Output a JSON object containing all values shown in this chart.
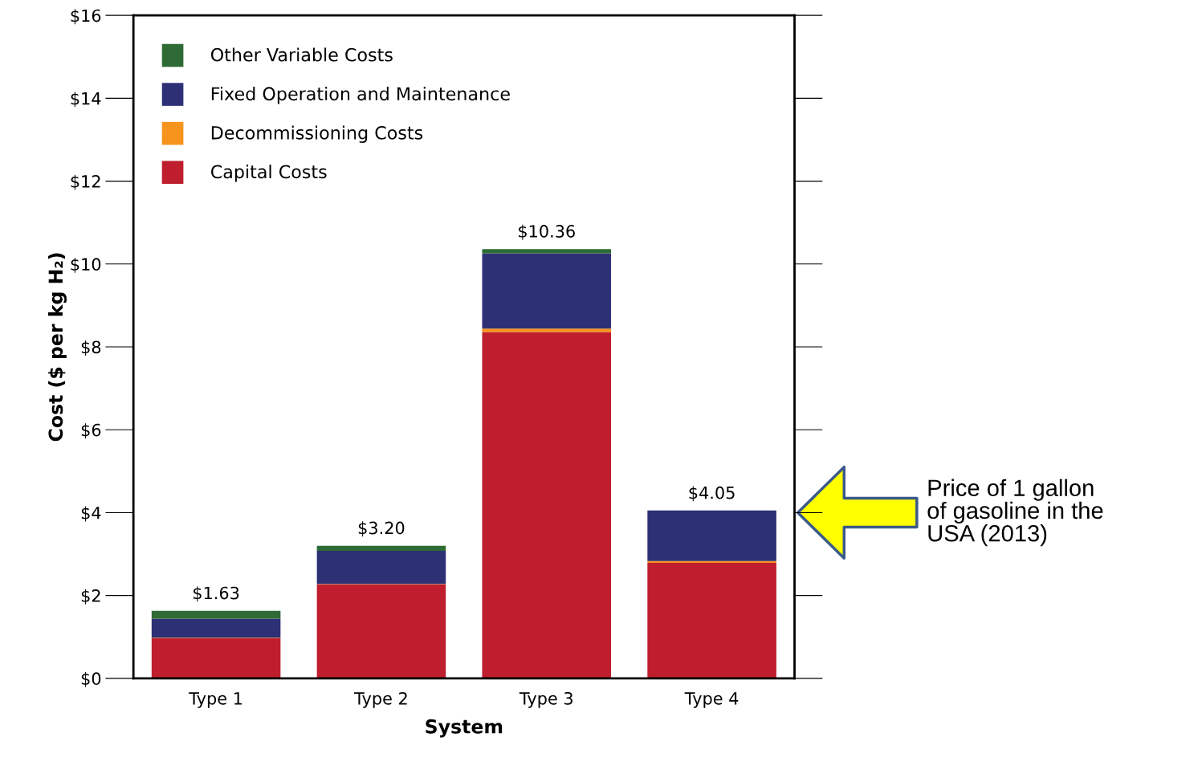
{
  "chart_data": {
    "type": "bar",
    "stacked": true,
    "xlabel": "System",
    "ylabel": "Cost ($ per kg H₂)",
    "categories": [
      "Type 1",
      "Type 2",
      "Type 3",
      "Type 4"
    ],
    "series": [
      {
        "name": "Capital Costs",
        "color": "#be1e2d",
        "values": [
          0.97,
          2.27,
          8.36,
          2.79
        ]
      },
      {
        "name": "Decommissioning Costs",
        "color": "#f7941d",
        "values": [
          0.01,
          0.01,
          0.08,
          0.04
        ]
      },
      {
        "name": "Fixed Operation and Maintenance",
        "color": "#2e3076",
        "values": [
          0.46,
          0.8,
          1.82,
          1.22
        ]
      },
      {
        "name": "Other Variable Costs",
        "color": "#2e6b35",
        "values": [
          0.19,
          0.12,
          0.1,
          0.0
        ]
      }
    ],
    "totals": [
      "$1.63",
      "$3.20",
      "$10.36",
      "$4.05"
    ],
    "ylim": [
      0,
      16
    ],
    "yticks": [
      {
        "value": 0,
        "label": "$0"
      },
      {
        "value": 2,
        "label": "$2"
      },
      {
        "value": 4,
        "label": "$4"
      },
      {
        "value": 6,
        "label": "$6"
      },
      {
        "value": 8,
        "label": "$8"
      },
      {
        "value": 10,
        "label": "$10"
      },
      {
        "value": 12,
        "label": "$12"
      },
      {
        "value": 14,
        "label": "$14"
      },
      {
        "value": 16,
        "label": "$16"
      }
    ],
    "grid": false,
    "legend": "top left",
    "annotations": [
      "Price of 1 gallon\nof gasoline in the\nUSA (2013)"
    ]
  }
}
